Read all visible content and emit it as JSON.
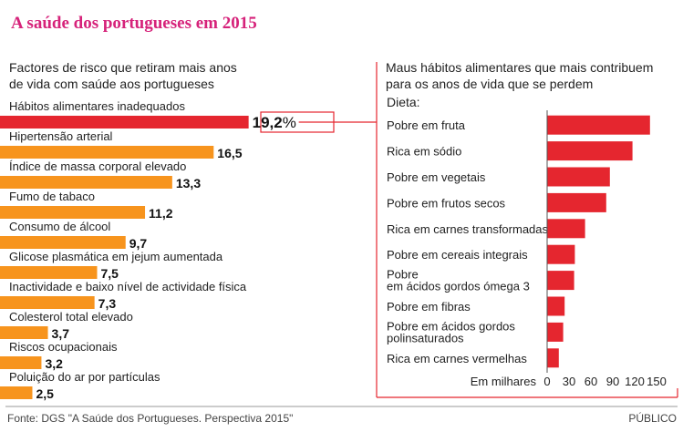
{
  "header": {
    "title": "A saúde dos portugueses em 2015"
  },
  "footer": {
    "source": "Fonte: DGS \"A Saúde dos Portugueses. Perspectiva 2015\"",
    "brand": "PÚBLICO"
  },
  "colors": {
    "title": "#d6227a",
    "highlight": "#e5262f",
    "bar": "#f7941d",
    "right_bar": "#e5262f",
    "rule": "#333333"
  },
  "chart_data": [
    {
      "type": "bar",
      "orientation": "horizontal",
      "title": "Factores de risco que retiram mais anos de vida com saúde aos portugueses",
      "title_lines": [
        "Factores de risco que retiram mais anos",
        "de vida com saúde aos portugueses"
      ],
      "categories": [
        "Hábitos alimentares inadequados",
        "Hipertensão arterial",
        "Índice de massa corporal elevado",
        "Fumo de tabaco",
        "Consumo de álcool",
        "Glicose plasmática em jejum aumentada",
        "Inactividade e baixo nível de actividade física",
        "Colesterol total elevado",
        "Riscos ocupacionais",
        "Poluição do ar por partículas"
      ],
      "values": [
        19.2,
        16.5,
        13.3,
        11.2,
        9.7,
        7.5,
        7.3,
        3.7,
        3.2,
        2.5
      ],
      "value_labels": [
        "19,2",
        "16,5",
        "13,3",
        "11,2",
        "9,7",
        "7,5",
        "7,3",
        "3,7",
        "3,2",
        "2,5"
      ],
      "unit": "%",
      "highlighted_index": 0,
      "xlim": [
        0,
        20
      ]
    },
    {
      "type": "bar",
      "orientation": "horizontal",
      "title": "Maus hábitos alimentares que mais contribuem para os anos de vida que se perdem",
      "title_lines": [
        "Maus hábitos alimentares que mais contribuem",
        "para os anos de vida que se perdem"
      ],
      "subtitle": "Dieta:",
      "categories": [
        "Pobre em fruta",
        "Rica em sódio",
        "Pobre em vegetais",
        "Pobre em frutos secos",
        "Rica em carnes transformadas",
        "Pobre em cereais integrais",
        "Pobre em ácidos gordos ómega 3",
        "Pobre em fibras",
        "Pobre em ácidos gordos polinsaturados",
        "Rica em carnes vermelhas"
      ],
      "category_lines": [
        [
          "Pobre em fruta"
        ],
        [
          "Rica em sódio"
        ],
        [
          "Pobre em vegetais"
        ],
        [
          "Pobre em frutos secos"
        ],
        [
          "Rica em carnes transformadas"
        ],
        [
          "Pobre em cereais integrais"
        ],
        [
          "Pobre",
          "em ácidos gordos ómega 3"
        ],
        [
          "Pobre em fibras"
        ],
        [
          "Pobre em ácidos gordos",
          "polinsaturados"
        ],
        [
          "Rica em carnes vermelhas"
        ]
      ],
      "values": [
        141,
        117,
        86,
        81,
        52,
        38,
        37,
        24,
        22,
        16
      ],
      "xlabel": "Em milhares",
      "xticks": [
        0,
        30,
        60,
        90,
        120,
        150
      ],
      "xlim": [
        0,
        150
      ],
      "grid": false
    }
  ]
}
